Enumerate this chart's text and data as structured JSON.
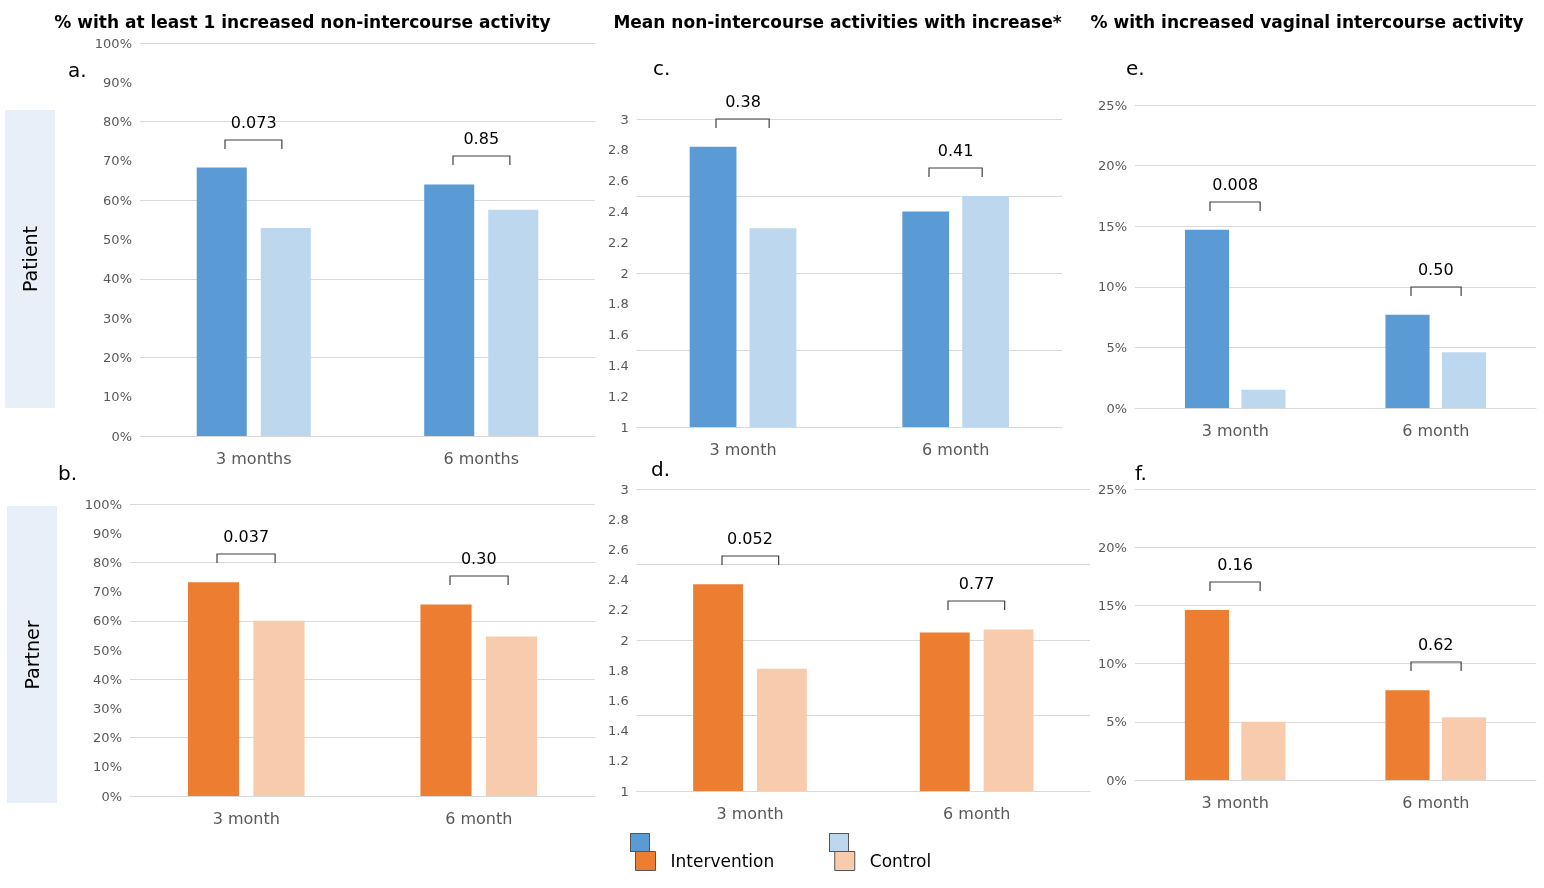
{
  "chart_data": [
    {
      "type": "bar",
      "title": "% with at least 1 increased non-intercourse activity",
      "categories": [
        "3 months",
        "6 months"
      ],
      "series": [
        {
          "color": "#5b9bd5",
          "values": [
            68.3,
            64.0
          ]
        },
        {
          "color": "#bdd7ee",
          "values": [
            52.9,
            57.6
          ]
        }
      ],
      "ylim": [
        0,
        100
      ],
      "yticks": [
        {
          "value": 0,
          "label": "0%"
        },
        {
          "value": 10,
          "label": "10%"
        },
        {
          "value": 20,
          "label": "20%"
        },
        {
          "value": 30,
          "label": "30%"
        },
        {
          "value": 40,
          "label": "40%"
        },
        {
          "value": 50,
          "label": "50%"
        },
        {
          "value": 60,
          "label": "60%"
        },
        {
          "value": 70,
          "label": "70%"
        },
        {
          "value": 80,
          "label": "80%"
        },
        {
          "value": 90,
          "label": "90%"
        },
        {
          "value": 100,
          "label": "100%"
        }
      ],
      "grid": "y",
      "annotations": [
        "a.",
        "Patient",
        "0.073",
        "0.85"
      ]
    },
    {
      "type": "bar",
      "title": "Mean non-intercourse activities with increase*",
      "categories": [
        "3 month",
        "6 month"
      ],
      "series": [
        {
          "color": "#5b9bd5",
          "values": [
            2.82,
            2.4
          ]
        },
        {
          "color": "#bdd7ee",
          "values": [
            2.29,
            2.5
          ]
        }
      ],
      "ylim": [
        1,
        3
      ],
      "yticks": [
        1,
        1.2,
        1.4,
        1.6,
        1.8,
        2,
        2.2,
        2.4,
        2.6,
        2.8,
        3
      ],
      "grid": "y",
      "annotations": [
        "c.",
        "0.38",
        "0.41"
      ]
    },
    {
      "type": "bar",
      "title": "% with increased vaginal intercourse activity",
      "categories": [
        "3 month",
        "6 month"
      ],
      "series": [
        {
          "color": "#5b9bd5",
          "values": [
            14.7,
            7.7
          ]
        },
        {
          "color": "#bdd7ee",
          "values": [
            1.5,
            4.6
          ]
        }
      ],
      "ylim": [
        0,
        25
      ],
      "yticks": [
        {
          "value": 0,
          "label": "0%"
        },
        {
          "value": 5,
          "label": "5%"
        },
        {
          "value": 10,
          "label": "10%"
        },
        {
          "value": 15,
          "label": "15%"
        },
        {
          "value": 20,
          "label": "20%"
        },
        {
          "value": 25,
          "label": "25%"
        }
      ],
      "grid": "y",
      "annotations": [
        "e.",
        "0.008",
        "0.50"
      ]
    },
    {
      "type": "bar",
      "categories": [
        "3 month",
        "6 month"
      ],
      "series": [
        {
          "color": "#ed7d31",
          "values": [
            73.2,
            65.6
          ]
        },
        {
          "color": "#f8cbad",
          "values": [
            60.0,
            54.6
          ]
        }
      ],
      "ylim": [
        0,
        100
      ],
      "yticks": [
        {
          "value": 0,
          "label": "0%"
        },
        {
          "value": 10,
          "label": "10%"
        },
        {
          "value": 20,
          "label": "20%"
        },
        {
          "value": 30,
          "label": "30%"
        },
        {
          "value": 40,
          "label": "40%"
        },
        {
          "value": 50,
          "label": "50%"
        },
        {
          "value": 60,
          "label": "60%"
        },
        {
          "value": 70,
          "label": "70%"
        },
        {
          "value": 80,
          "label": "80%"
        },
        {
          "value": 90,
          "label": "90%"
        },
        {
          "value": 100,
          "label": "100%"
        }
      ],
      "grid": "y",
      "annotations": [
        "b.",
        "Partner",
        "0.037",
        "0.30"
      ]
    },
    {
      "type": "bar",
      "categories": [
        "3 month",
        "6 month"
      ],
      "series": [
        {
          "name": "Intervention",
          "color": "#ed7d31",
          "values": [
            2.37,
            2.05
          ]
        },
        {
          "name": "Control",
          "color": "#f8cbad",
          "values": [
            1.81,
            2.07
          ]
        }
      ],
      "ylim": [
        1,
        3
      ],
      "yticks": [
        1,
        1.2,
        1.4,
        1.6,
        1.8,
        2,
        2.2,
        2.4,
        2.6,
        2.8,
        3
      ],
      "grid": "y",
      "legend": "bottom",
      "annotations": [
        "d.",
        "0.052",
        "0.77"
      ]
    },
    {
      "type": "bar",
      "categories": [
        "3 month",
        "6 month"
      ],
      "series": [
        {
          "color": "#ed7d31",
          "values": [
            14.6,
            7.7
          ]
        },
        {
          "color": "#f8cbad",
          "values": [
            5.0,
            5.4
          ]
        }
      ],
      "ylim": [
        0,
        25
      ],
      "yticks": [
        {
          "value": 0,
          "label": "0%"
        },
        {
          "value": 5,
          "label": "5%"
        },
        {
          "value": 10,
          "label": "10%"
        },
        {
          "value": 15,
          "label": "15%"
        },
        {
          "value": 20,
          "label": "20%"
        },
        {
          "value": 25,
          "label": "25%"
        }
      ],
      "grid": "y",
      "annotations": [
        "f.",
        "0.16",
        "0.62"
      ]
    }
  ]
}
